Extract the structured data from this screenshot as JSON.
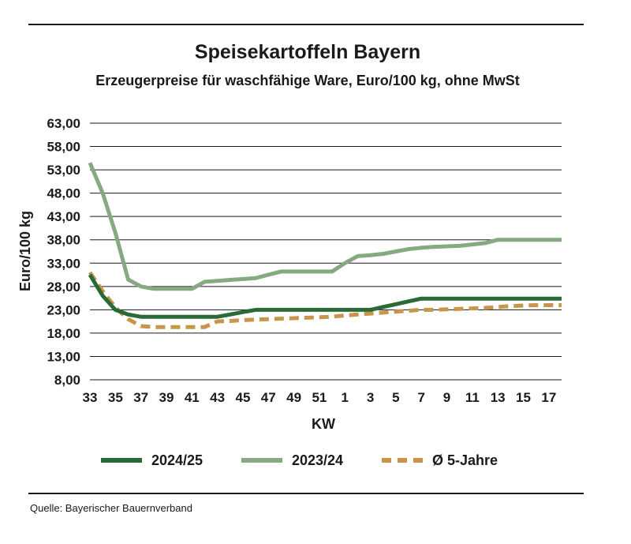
{
  "header": {
    "title": "Speisekartoffeln Bayern",
    "subtitle": "Erzeugerpreise für waschfähige Ware, Euro/100 kg, ohne MwSt"
  },
  "source": "Quelle: Bayerischer Bauernverband",
  "chart_data": {
    "type": "line",
    "title": "Speisekartoffeln Bayern",
    "subtitle": "Erzeugerpreise für waschfähige Ware, Euro/100 kg, ohne MwSt",
    "xlabel": "KW",
    "ylabel": "Euro/100 kg",
    "ylim": [
      8,
      63
    ],
    "yticks": [
      "8,00",
      "13,00",
      "18,00",
      "23,00",
      "28,00",
      "33,00",
      "38,00",
      "43,00",
      "48,00",
      "53,00",
      "58,00",
      "63,00"
    ],
    "categories": [
      "33",
      "34",
      "35",
      "36",
      "37",
      "38",
      "39",
      "40",
      "41",
      "42",
      "43",
      "44",
      "45",
      "46",
      "47",
      "48",
      "49",
      "50",
      "51",
      "52",
      "1",
      "2",
      "3",
      "4",
      "5",
      "6",
      "7",
      "8",
      "9",
      "10",
      "11",
      "12",
      "13",
      "14",
      "15",
      "16",
      "17",
      "18"
    ],
    "xtick_labels": [
      "33",
      "35",
      "37",
      "39",
      "41",
      "43",
      "45",
      "47",
      "49",
      "51",
      "1",
      "3",
      "5",
      "7",
      "9",
      "11",
      "13",
      "15",
      "17"
    ],
    "grid": true,
    "legend_position": "bottom",
    "series": [
      {
        "name": "2024/25",
        "color": "#2a6a37",
        "style": "solid",
        "values": [
          30.5,
          26.0,
          23.0,
          22.0,
          21.5,
          21.5,
          21.5,
          21.5,
          21.5,
          21.5,
          21.5,
          22.0,
          22.5,
          23.0,
          23.0,
          23.0,
          23.0,
          23.0,
          23.0,
          23.0,
          23.0,
          23.0,
          23.0,
          23.6,
          24.2,
          24.8,
          25.4,
          25.4,
          25.4,
          25.4,
          25.4,
          25.4,
          25.4,
          25.4,
          25.4,
          25.4,
          25.4,
          25.4
        ]
      },
      {
        "name": "2023/24",
        "color": "#86a982",
        "style": "solid",
        "values": [
          54.5,
          48.0,
          39.5,
          29.5,
          28.0,
          27.5,
          27.5,
          27.5,
          27.5,
          29.0,
          29.2,
          29.4,
          29.6,
          29.8,
          30.5,
          31.2,
          31.2,
          31.2,
          31.2,
          31.2,
          33.0,
          34.5,
          34.7,
          35.0,
          35.5,
          36.0,
          36.3,
          36.5,
          36.6,
          36.7,
          37.0,
          37.3,
          38.0,
          38.0,
          38.0,
          38.0,
          38.0,
          38.0
        ]
      },
      {
        "name": "Ø 5-Jahre",
        "color": "#c8954a",
        "style": "dashed",
        "values": [
          31.0,
          27.0,
          23.5,
          21.0,
          19.5,
          19.3,
          19.3,
          19.3,
          19.3,
          19.3,
          20.5,
          20.6,
          20.8,
          20.9,
          21.0,
          21.1,
          21.2,
          21.3,
          21.4,
          21.5,
          21.8,
          22.0,
          22.2,
          22.4,
          22.6,
          22.8,
          23.0,
          23.0,
          23.1,
          23.2,
          23.3,
          23.4,
          23.6,
          23.8,
          23.9,
          24.0,
          24.0,
          24.0
        ]
      }
    ]
  }
}
